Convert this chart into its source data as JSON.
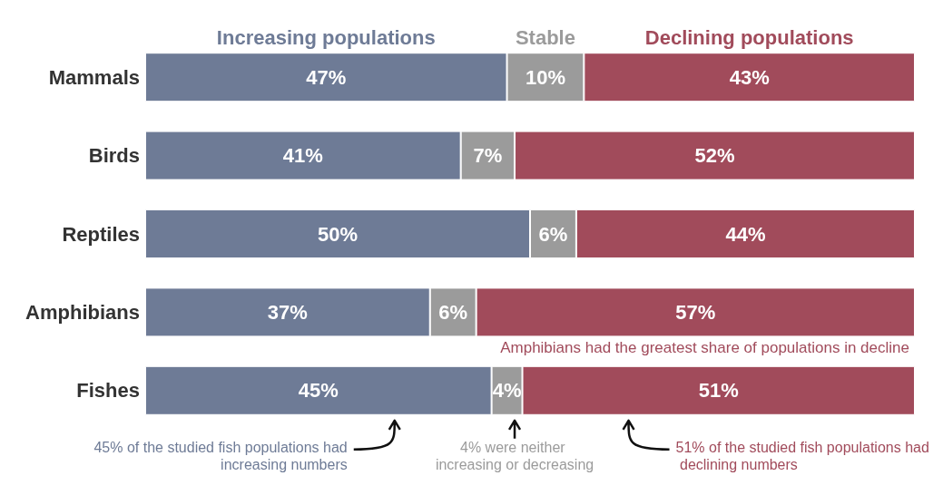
{
  "chart_data": {
    "type": "bar",
    "orientation": "horizontal",
    "stacked": true,
    "categories": [
      "Mammals",
      "Birds",
      "Reptiles",
      "Amphibians",
      "Fishes"
    ],
    "series": [
      {
        "name": "Increasing populations",
        "color": "#6e7b96",
        "values": [
          47,
          41,
          50,
          37,
          45
        ],
        "value_labels": [
          "47%",
          "41%",
          "50%",
          "37%",
          "45%"
        ]
      },
      {
        "name": "Stable",
        "color": "#9b9b9b",
        "values": [
          10,
          7,
          6,
          6,
          4
        ],
        "value_labels": [
          "10%",
          "7%",
          "6%",
          "6%",
          "4%"
        ]
      },
      {
        "name": "Declining populations",
        "color": "#a14b5b",
        "values": [
          43,
          52,
          44,
          57,
          51
        ],
        "value_labels": [
          "43%",
          "52%",
          "44%",
          "57%",
          "51%"
        ]
      }
    ],
    "annotations": [
      "Amphibians had the greatest share of populations in decline",
      "45% of the studied fish populations had increasing numbers",
      "4% were neither increasing or decreasing",
      "51% of the studied fish populations had declining numbers"
    ],
    "legend": "top",
    "grid": false
  }
}
